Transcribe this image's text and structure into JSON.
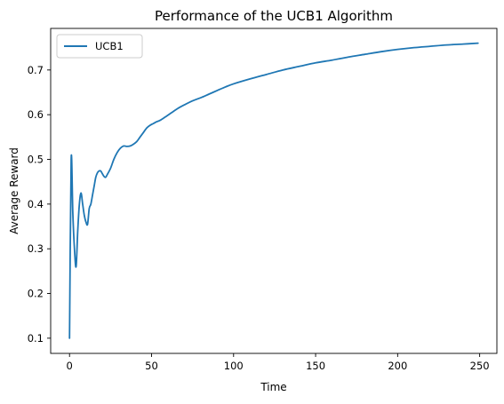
{
  "chart_data": {
    "type": "line",
    "title": "Performance of the UCB1 Algorithm",
    "xlabel": "Time",
    "ylabel": "Average Reward",
    "xlim": [
      -11.5,
      260.5
    ],
    "ylim": [
      0.066,
      0.793
    ],
    "xticks": [
      0,
      50,
      100,
      150,
      200,
      250
    ],
    "yticks": [
      0.1,
      0.2,
      0.3,
      0.4,
      0.5,
      0.6,
      0.7
    ],
    "ytick_labels": [
      "0.1",
      "0.2",
      "0.3",
      "0.4",
      "0.5",
      "0.6",
      "0.7"
    ],
    "grid": false,
    "legend_position": "top-left",
    "series": [
      {
        "name": "UCB1",
        "color": "#1f77b4",
        "points": [
          [
            0,
            0.1
          ],
          [
            1,
            0.5
          ],
          [
            2,
            0.38
          ],
          [
            3,
            0.3
          ],
          [
            4,
            0.26
          ],
          [
            5,
            0.34
          ],
          [
            6,
            0.4
          ],
          [
            7,
            0.425
          ],
          [
            8,
            0.4
          ],
          [
            9,
            0.375
          ],
          [
            10,
            0.36
          ],
          [
            11,
            0.355
          ],
          [
            12,
            0.39
          ],
          [
            13,
            0.4
          ],
          [
            14,
            0.42
          ],
          [
            15,
            0.44
          ],
          [
            16,
            0.46
          ],
          [
            17,
            0.47
          ],
          [
            18,
            0.474
          ],
          [
            19,
            0.474
          ],
          [
            20,
            0.468
          ],
          [
            21,
            0.462
          ],
          [
            22,
            0.46
          ],
          [
            23,
            0.466
          ],
          [
            25,
            0.48
          ],
          [
            27,
            0.5
          ],
          [
            29,
            0.515
          ],
          [
            31,
            0.525
          ],
          [
            33,
            0.53
          ],
          [
            35,
            0.529
          ],
          [
            37,
            0.53
          ],
          [
            39,
            0.534
          ],
          [
            41,
            0.54
          ],
          [
            43,
            0.55
          ],
          [
            45,
            0.56
          ],
          [
            47,
            0.57
          ],
          [
            49,
            0.576
          ],
          [
            51,
            0.58
          ],
          [
            53,
            0.584
          ],
          [
            55,
            0.587
          ],
          [
            58,
            0.594
          ],
          [
            62,
            0.604
          ],
          [
            66,
            0.614
          ],
          [
            70,
            0.622
          ],
          [
            75,
            0.631
          ],
          [
            80,
            0.638
          ],
          [
            85,
            0.646
          ],
          [
            90,
            0.654
          ],
          [
            95,
            0.662
          ],
          [
            100,
            0.669
          ],
          [
            110,
            0.68
          ],
          [
            120,
            0.69
          ],
          [
            130,
            0.7
          ],
          [
            140,
            0.708
          ],
          [
            150,
            0.716
          ],
          [
            160,
            0.722
          ],
          [
            170,
            0.729
          ],
          [
            180,
            0.735
          ],
          [
            190,
            0.741
          ],
          [
            200,
            0.746
          ],
          [
            210,
            0.75
          ],
          [
            220,
            0.753
          ],
          [
            230,
            0.756
          ],
          [
            240,
            0.758
          ],
          [
            249,
            0.76
          ]
        ]
      }
    ]
  }
}
